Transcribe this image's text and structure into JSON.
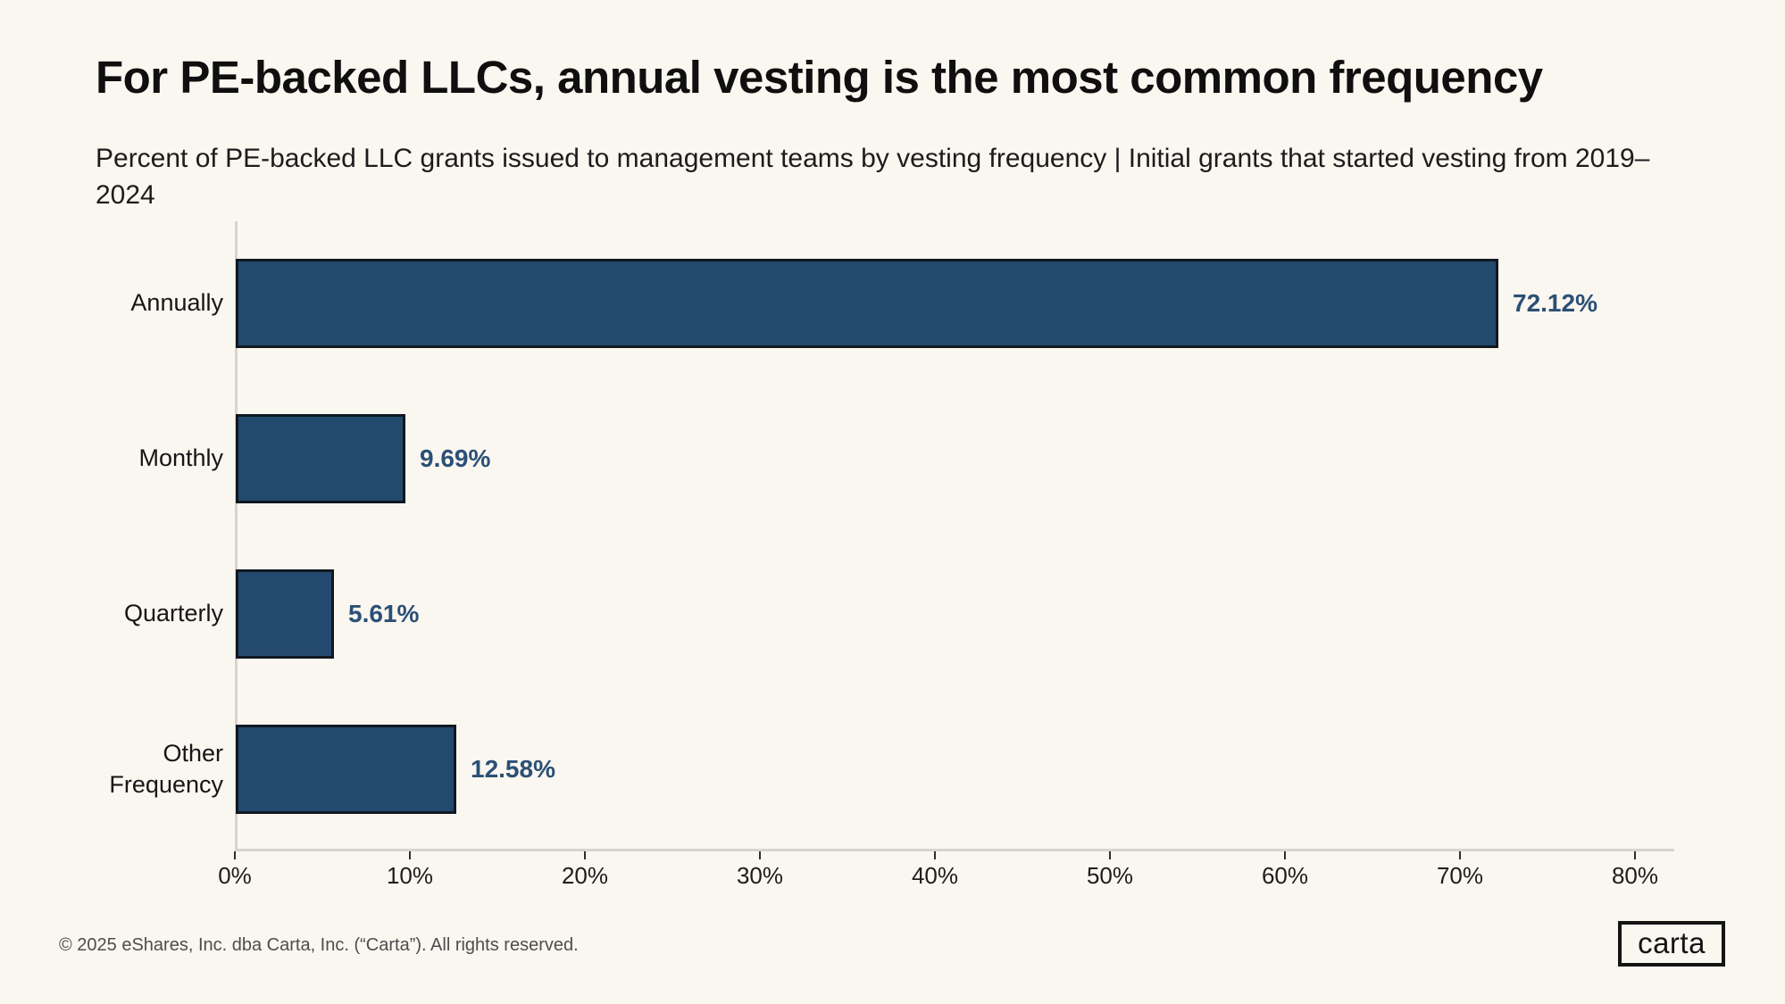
{
  "page": {
    "title": "For PE-backed LLCs, annual vesting is the most common frequency",
    "subtitle": "Percent of PE-backed LLC grants issued to management teams by vesting frequency | Initial grants that started vesting from 2019–2024",
    "footer": "© 2025 eShares, Inc. dba Carta, Inc. (“Carta”). All rights reserved.",
    "logo_text": "carta"
  },
  "chart_data": {
    "type": "bar",
    "orientation": "horizontal",
    "title": "For PE-backed LLCs, annual vesting is the most common frequency",
    "subtitle": "Percent of PE-backed LLC grants issued to management teams by vesting frequency | Initial grants that started vesting from 2019–2024",
    "categories": [
      "Annually",
      "Monthly",
      "Quarterly",
      "Other Frequency"
    ],
    "values": [
      72.12,
      9.69,
      5.61,
      12.58
    ],
    "value_labels": [
      "72.12%",
      "9.69%",
      "5.61%",
      "12.58%"
    ],
    "xlabel": "",
    "ylabel": "",
    "xlim": [
      0,
      80
    ],
    "x_tick_labels": [
      "0%",
      "10%",
      "20%",
      "30%",
      "40%",
      "50%",
      "60%",
      "70%",
      "80%"
    ],
    "x_tick_values": [
      0,
      10,
      20,
      30,
      40,
      50,
      60,
      70,
      80
    ],
    "grid": false,
    "legend": false,
    "colors": {
      "background": "#faf6f0",
      "bar_fill": "#24496e",
      "bar_border": "#101820",
      "value_label": "#2b5076",
      "axis_line": "#d8d4cd"
    }
  }
}
